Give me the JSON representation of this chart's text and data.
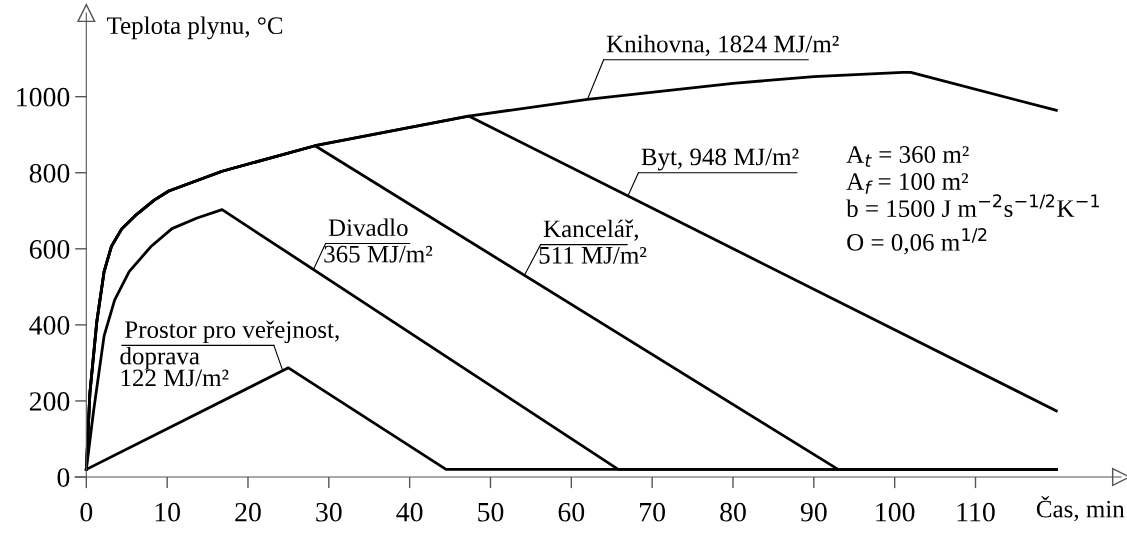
{
  "chart_data": {
    "type": "line",
    "xlabel": "Čas, min",
    "ylabel": "Teplota plynu, °C",
    "xlim": [
      -1.4,
      128
    ],
    "ylim": [
      0,
      1220
    ],
    "xticks": [
      0,
      10,
      20,
      30,
      40,
      50,
      60,
      70,
      80,
      90,
      100,
      110
    ],
    "yticks": [
      0,
      200,
      400,
      600,
      800,
      1000
    ],
    "grid": false,
    "marker": "none",
    "line_style": "solid",
    "series": [
      {
        "name": "Knihovna, 1824 MJ/m²",
        "color": "#000000",
        "x": [
          0,
          0.44,
          1.3,
          2.2,
          3.1,
          4.4,
          6.2,
          8.4,
          10.2,
          16.8,
          28.3,
          47.3,
          62,
          80,
          90,
          101,
          102,
          120
        ],
        "values": [
          20,
          220,
          409,
          540,
          606,
          653,
          690,
          728,
          752,
          804,
          871,
          949,
          993,
          1035,
          1053,
          1064,
          1064,
          964
        ]
      },
      {
        "name": "Byt, 948 MJ/m²",
        "color": "#000000",
        "x": [
          0,
          0.44,
          1.3,
          2.2,
          3.1,
          4.4,
          6.2,
          8.4,
          10.2,
          16.8,
          28.3,
          47.3,
          120
        ],
        "values": [
          20,
          220,
          409,
          540,
          606,
          653,
          690,
          728,
          752,
          804,
          871,
          949,
          174
        ]
      },
      {
        "name": "Kancelář,\n511 MJ/m²",
        "color": "#000000",
        "x": [
          0,
          0.44,
          1.3,
          2.2,
          3.1,
          4.4,
          6.2,
          8.4,
          10.2,
          16.8,
          28.3,
          93,
          120
        ],
        "values": [
          20,
          220,
          409,
          540,
          606,
          653,
          690,
          728,
          752,
          804,
          871,
          20,
          20
        ]
      },
      {
        "name": "Divadlo\n365 MJ/m²",
        "color": "#000000",
        "x": [
          0,
          0.9,
          2.2,
          3.5,
          5.3,
          8.0,
          10.6,
          13.7,
          16.8,
          65.8,
          120
        ],
        "values": [
          20,
          174,
          371,
          465,
          540,
          606,
          653,
          681,
          703,
          20,
          20
        ]
      },
      {
        "name": "Prostor pro veřejnost,\ndoprava\n122 MJ/m²",
        "color": "#000000",
        "x": [
          0,
          25,
          44.5,
          120
        ],
        "values": [
          20,
          287,
          20,
          20
        ]
      }
    ],
    "annotations": [
      "A$_{t}$ = 360 m²",
      "A$_{f}$ = 100 m²",
      "b = 1500 J m$^{−2}$s$^{−1/2}$K$^{−1}$",
      "O = 0,06 m$^{1/2}$"
    ]
  }
}
